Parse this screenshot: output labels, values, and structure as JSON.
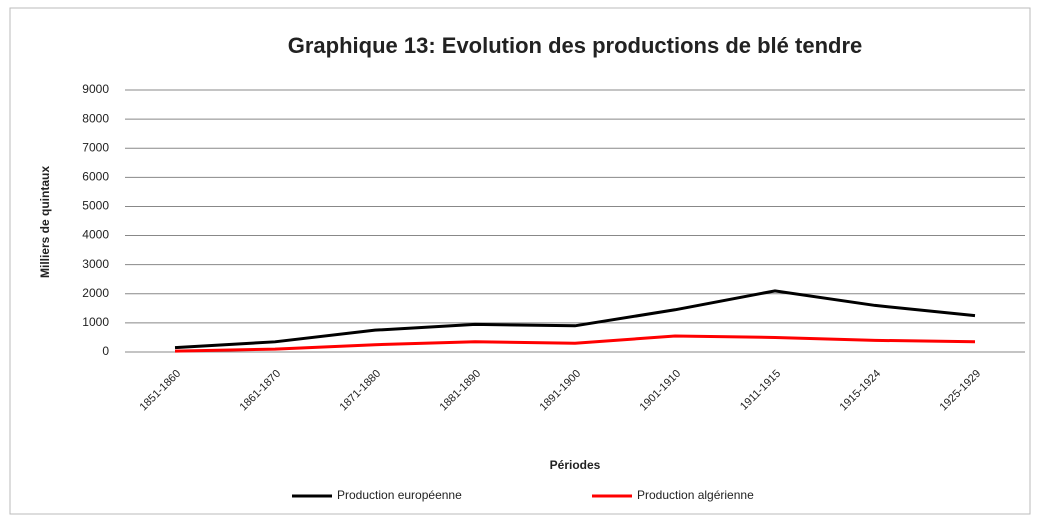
{
  "chart_data": {
    "type": "line",
    "title": "Graphique 13: Evolution des productions de blé tendre",
    "y_label": "Milliers de quintaux",
    "x_label": "Périodes",
    "categories": [
      "1851-1860",
      "1861-1870",
      "1871-1880",
      "1881-1890",
      "1891-1900",
      "1901-1910",
      "1911-1915",
      "1915-1924",
      "1925-1929"
    ],
    "series": [
      {
        "name": "Production européenne",
        "color": "#000000",
        "values": [
          150,
          350,
          750,
          950,
          900,
          1450,
          2100,
          1600,
          1250
        ]
      },
      {
        "name": "Production algérienne",
        "color": "#ff0000",
        "values": [
          30,
          100,
          250,
          350,
          300,
          550,
          500,
          400,
          350
        ]
      }
    ],
    "ylim": [
      0,
      9000
    ],
    "yticks": [
      0,
      1000,
      2000,
      3000,
      4000,
      5000,
      6000,
      7000,
      8000,
      9000
    ],
    "grid": true
  }
}
